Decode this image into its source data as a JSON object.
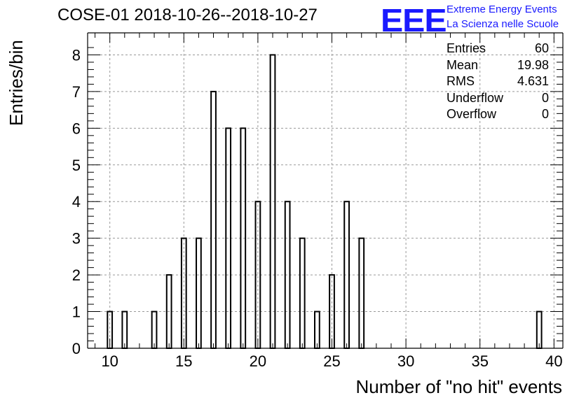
{
  "header": {
    "title": "COSE-01 2018-10-26--2018-10-27",
    "logo_mark": "EEE",
    "logo_line1": "Extreme Energy Events",
    "logo_line2": "La Scienza nelle Scuole",
    "logo_color": "#1a1aff"
  },
  "stats": [
    {
      "label": "Entries",
      "value": "60"
    },
    {
      "label": "Mean",
      "value": "19.98"
    },
    {
      "label": "RMS",
      "value": "4.631"
    },
    {
      "label": "Underflow",
      "value": "0"
    },
    {
      "label": "Overflow",
      "value": "0"
    }
  ],
  "chart_data": {
    "type": "bar",
    "style": "histogram-outline",
    "xlabel": "Number of \"no hit\" events",
    "ylabel": "Entries/bin",
    "xlim": [
      8.5,
      40.6
    ],
    "ylim": [
      0,
      8.6
    ],
    "x_ticks": [
      10,
      15,
      20,
      25,
      30,
      35,
      40
    ],
    "y_ticks": [
      0,
      1,
      2,
      3,
      4,
      5,
      6,
      7,
      8
    ],
    "grid": true,
    "bin_width": 0.32,
    "bins": [
      {
        "x": 10,
        "y": 1
      },
      {
        "x": 11,
        "y": 1
      },
      {
        "x": 13,
        "y": 1
      },
      {
        "x": 14,
        "y": 2
      },
      {
        "x": 15,
        "y": 3
      },
      {
        "x": 16,
        "y": 3
      },
      {
        "x": 17,
        "y": 7
      },
      {
        "x": 18,
        "y": 6
      },
      {
        "x": 19,
        "y": 6
      },
      {
        "x": 20,
        "y": 4
      },
      {
        "x": 21,
        "y": 8
      },
      {
        "x": 22,
        "y": 4
      },
      {
        "x": 23,
        "y": 3
      },
      {
        "x": 24,
        "y": 1
      },
      {
        "x": 25,
        "y": 2
      },
      {
        "x": 26,
        "y": 4
      },
      {
        "x": 27,
        "y": 3
      },
      {
        "x": 39,
        "y": 1
      }
    ]
  }
}
